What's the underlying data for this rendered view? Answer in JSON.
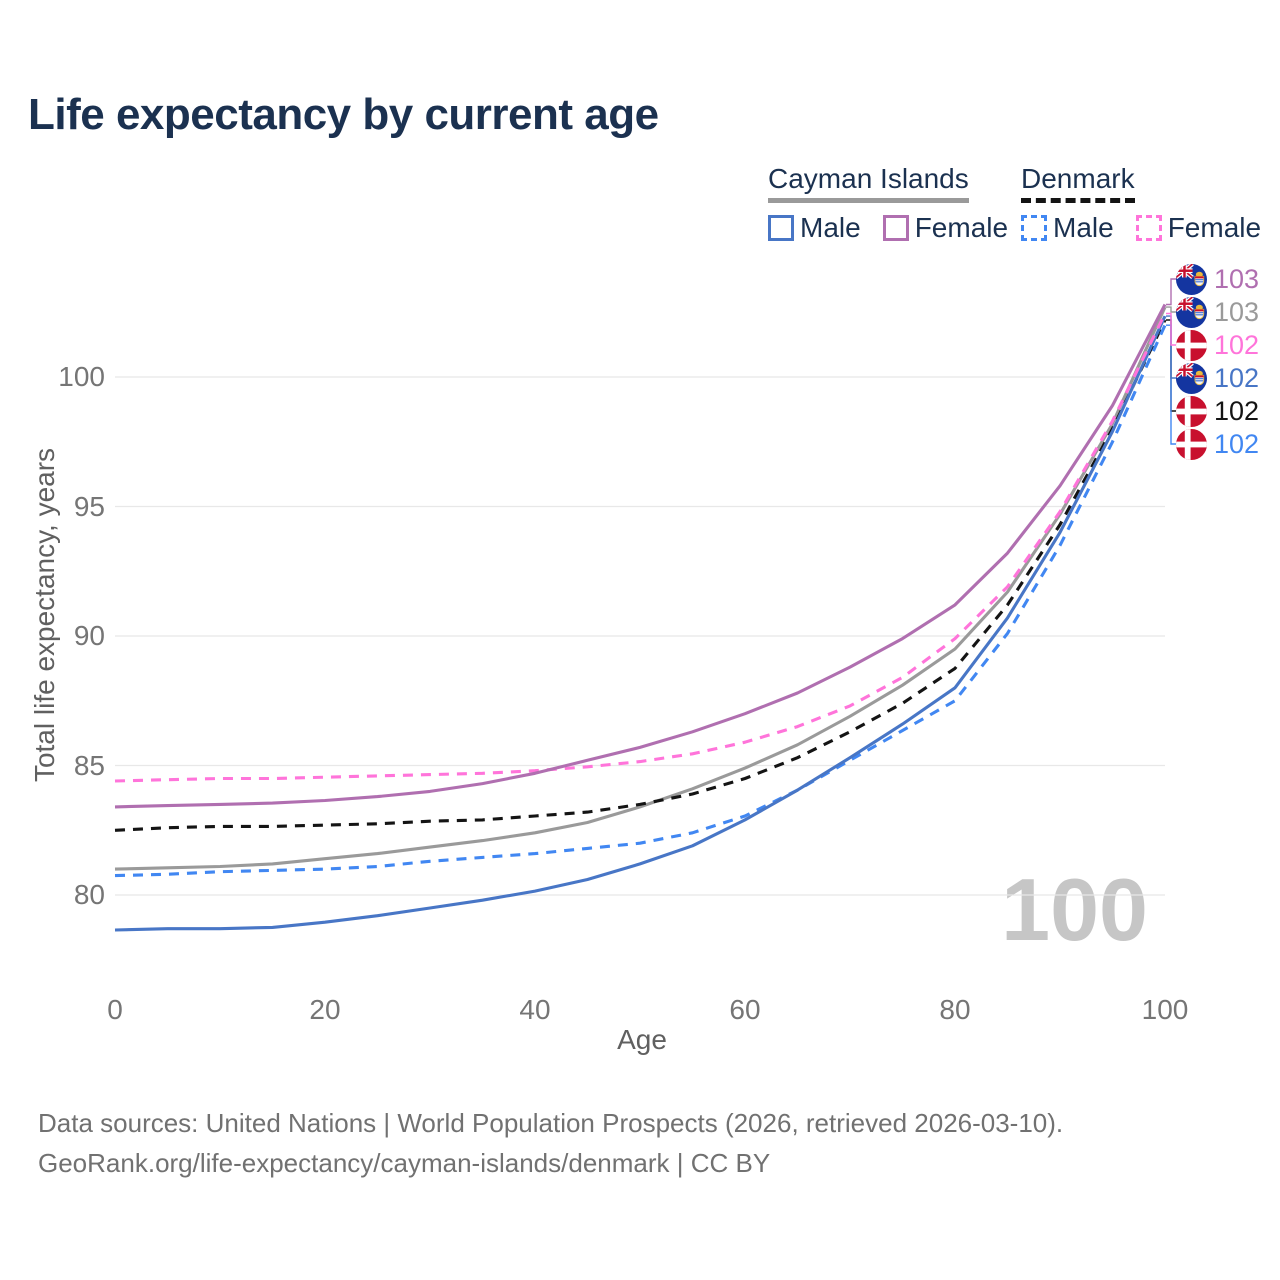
{
  "title": "Life expectancy by current age",
  "watermark": "100",
  "legend": {
    "groups": [
      {
        "label": "Cayman Islands",
        "underline": "solid",
        "underline_color": "#9a9a9a",
        "items": [
          {
            "label": "Male",
            "color": "#4876c6",
            "dashed": false
          },
          {
            "label": "Female",
            "color": "#b06fb0",
            "dashed": false
          }
        ]
      },
      {
        "label": "Denmark",
        "underline": "dashed",
        "underline_color": "#141414",
        "items": [
          {
            "label": "Male",
            "color": "#4187f2",
            "dashed": true
          },
          {
            "label": "Female",
            "color": "#ff74da",
            "dashed": true
          }
        ]
      }
    ]
  },
  "footer": {
    "line1": "Data sources: United Nations | World Population Prospects (2026, retrieved 2026-03-10).",
    "line2": "GeoRank.org/life-expectancy/cayman-islands/denmark | CC BY"
  },
  "chart_data": {
    "type": "line",
    "title": "Life expectancy by current age",
    "xlabel": "Age",
    "ylabel": "Total life expectancy, years",
    "xlim": [
      0,
      100
    ],
    "ylim": [
      77.5,
      103.5
    ],
    "x_ticks": [
      0,
      20,
      40,
      60,
      80,
      100
    ],
    "y_ticks": [
      80,
      85,
      90,
      95,
      100
    ],
    "grid": "horizontal",
    "legend_position": "top-right",
    "x": [
      0,
      5,
      10,
      15,
      20,
      25,
      30,
      35,
      40,
      45,
      50,
      55,
      60,
      65,
      70,
      75,
      80,
      85,
      90,
      95,
      100
    ],
    "series": [
      {
        "name": "Cayman Islands — Both sexes",
        "country": "Cayman Islands",
        "line_style": "solid",
        "color": "#9a9a9a",
        "flag": "cayman",
        "end_label": "103",
        "label_slot": 1,
        "values": [
          81.0,
          81.05,
          81.1,
          81.2,
          81.4,
          81.6,
          81.85,
          82.1,
          82.4,
          82.8,
          83.4,
          84.1,
          84.9,
          85.8,
          86.9,
          88.1,
          89.5,
          91.7,
          94.7,
          98.2,
          102.7
        ]
      },
      {
        "name": "Denmark — Both sexes",
        "country": "Denmark",
        "line_style": "dashed",
        "color": "#141414",
        "flag": "denmark",
        "end_label": "102",
        "label_slot": 4,
        "values": [
          82.5,
          82.6,
          82.65,
          82.65,
          82.7,
          82.75,
          82.85,
          82.9,
          83.05,
          83.2,
          83.5,
          83.9,
          84.5,
          85.3,
          86.3,
          87.4,
          88.75,
          91.2,
          94.3,
          98.0,
          102.2
        ]
      },
      {
        "name": "Denmark — Male",
        "country": "Denmark",
        "line_style": "dashed",
        "color": "#4187f2",
        "flag": "denmark",
        "end_label": "102",
        "label_slot": 5,
        "values": [
          80.75,
          80.8,
          80.9,
          80.95,
          81.0,
          81.1,
          81.3,
          81.45,
          81.6,
          81.8,
          82.0,
          82.4,
          83.05,
          84.05,
          85.2,
          86.35,
          87.5,
          90.1,
          93.5,
          97.5,
          102.0
        ]
      },
      {
        "name": "Cayman Islands — Male",
        "country": "Cayman Islands",
        "line_style": "solid",
        "color": "#4876c6",
        "flag": "cayman",
        "end_label": "102",
        "label_slot": 3,
        "values": [
          78.65,
          78.7,
          78.7,
          78.75,
          78.95,
          79.2,
          79.5,
          79.8,
          80.15,
          80.6,
          81.2,
          81.9,
          82.9,
          84.05,
          85.3,
          86.6,
          88.0,
          90.7,
          94.0,
          97.9,
          102.35
        ]
      },
      {
        "name": "Denmark — Female",
        "country": "Denmark",
        "line_style": "dashed",
        "color": "#ff74da",
        "flag": "denmark",
        "end_label": "102",
        "label_slot": 2,
        "values": [
          84.4,
          84.45,
          84.5,
          84.5,
          84.55,
          84.6,
          84.65,
          84.7,
          84.8,
          84.95,
          85.15,
          85.45,
          85.9,
          86.5,
          87.3,
          88.4,
          89.9,
          91.9,
          94.8,
          98.3,
          102.45
        ]
      },
      {
        "name": "Cayman Islands — Female",
        "country": "Cayman Islands",
        "line_style": "solid",
        "color": "#b06fb0",
        "flag": "cayman",
        "end_label": "103",
        "label_slot": 0,
        "values": [
          83.4,
          83.45,
          83.5,
          83.55,
          83.65,
          83.8,
          84.0,
          84.3,
          84.7,
          85.2,
          85.7,
          86.3,
          87.0,
          87.8,
          88.8,
          89.9,
          91.2,
          93.2,
          95.8,
          98.9,
          102.8
        ]
      }
    ]
  }
}
